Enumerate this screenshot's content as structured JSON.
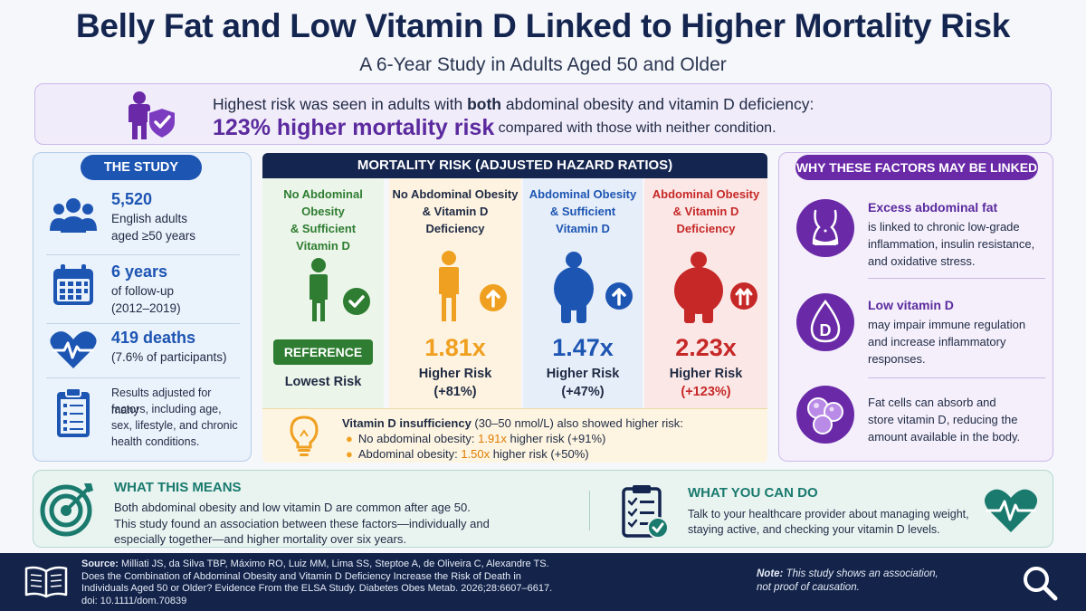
{
  "title": "Belly Fat and Low Vitamin D Linked to Higher Mortality Risk",
  "subtitle": "A 6-Year Study in Adults Aged 50 and Older",
  "banner": {
    "line1_pre": "Highest risk was seen in adults with ",
    "line1_bold": "both",
    "line1_post": " abdominal obesity and vitamin D deficiency:",
    "big": "123% higher mortality risk",
    "line2_post": " compared with those with neither condition."
  },
  "study": {
    "label": "THE STUDY",
    "items": [
      {
        "big": "5,520",
        "small1": "English adults",
        "small2": "aged ≥50 years",
        "icon": "people-icon"
      },
      {
        "big": "6 years",
        "small1": "of follow-up",
        "small2": "(2012–2019)",
        "icon": "calendar-icon"
      },
      {
        "big": "419 deaths",
        "small1": "(7.6% of participants)",
        "icon": "heartbeat-icon"
      },
      {
        "small1": "Results adjusted for many",
        "small2": "factors, including age,",
        "small3": "sex, lifestyle, and chronic",
        "small4": "health conditions.",
        "icon": "checklist-icon"
      }
    ]
  },
  "mortality": {
    "header": "MORTALITY RISK (ADJUSTED HAZARD RATIOS)",
    "columns": [
      {
        "head1": "No Abdominal",
        "head2": "Obesity",
        "head3": "& Sufficient",
        "head4": "Vitamin D",
        "ref": "REFERENCE",
        "low": "Lowest Risk",
        "color": "#2e7d32"
      },
      {
        "head1": "No Abdominal Obesity",
        "head2": "& Vitamin D",
        "head3": "Deficiency",
        "value": "1.81x",
        "hr": "Higher Risk",
        "pct": "(+81%)",
        "color": "#f0a020"
      },
      {
        "head1": "Abdominal Obesity",
        "head2": "& Sufficient",
        "head3": "Vitamin D",
        "value": "1.47x",
        "hr": "Higher Risk",
        "pct": "(+47%)",
        "color": "#1d55b3"
      },
      {
        "head1": "Abdominal Obesity",
        "head2": "& Vitamin D",
        "head3": "Deficiency",
        "value": "2.23x",
        "hr": "Higher Risk",
        "pct": "(+123%)",
        "color": "#c62828"
      }
    ],
    "vitd": {
      "l1_bold": "Vitamin D insufficiency",
      "l1_rest": " (30–50 nmol/L) also showed higher risk:",
      "b1_pre": "No abdominal obesity: ",
      "b1_val": "1.91x",
      "b1_post": " higher risk (+91%)",
      "b2_pre": "Abdominal obesity: ",
      "b2_val": "1.50x",
      "b2_post": " higher risk (+50%)"
    }
  },
  "why": {
    "label": "WHY THESE FACTORS MAY BE LINKED",
    "items": [
      {
        "title": "Excess abdominal fat",
        "d1": "is linked to chronic low-grade",
        "d2": "inflammation, insulin resistance,",
        "d3": "and oxidative stress.",
        "icon": "waist-icon"
      },
      {
        "title": "Low vitamin D",
        "d1": "may impair immune regulation",
        "d2": "and increase inflammatory",
        "d3": "responses.",
        "icon": "vitamin-d-drop-icon"
      },
      {
        "d1": "Fat cells can absorb and",
        "d2": "store vitamin D, reducing the",
        "d3": "amount available in the body.",
        "icon": "fat-cells-icon"
      }
    ]
  },
  "means": {
    "title": "WHAT THIS MEANS",
    "p1": "Both abdominal obesity and low vitamin D are common after age 50.",
    "p2": "This study found an association between these factors—individually and",
    "p3": "especially together—and higher mortality over six years.",
    "title2": "WHAT YOU CAN DO",
    "q1": "Talk to your healthcare provider about managing weight,",
    "q2": "staying active, and checking your vitamin D levels."
  },
  "footer": {
    "src_label": "Source:",
    "src1": " Milliati JS, da Silva TBP, Máximo RO, Luiz MM, Lima SS, Steptoe A, de Oliveira C, Alexandre TS.",
    "src2": "Does the Combination of Abdominal Obesity and Vitamin D Deficiency Increase the Risk of Death in",
    "src3": "Individuals Aged 50 or Older? Evidence From the ELSA Study. Diabetes Obes Metab. 2026;28:6607–6617.",
    "src4": "doi: 10.1111/dom.70839",
    "note_label": "Note:",
    "note1": " This study shows an association,",
    "note2": "not proof of causation."
  }
}
